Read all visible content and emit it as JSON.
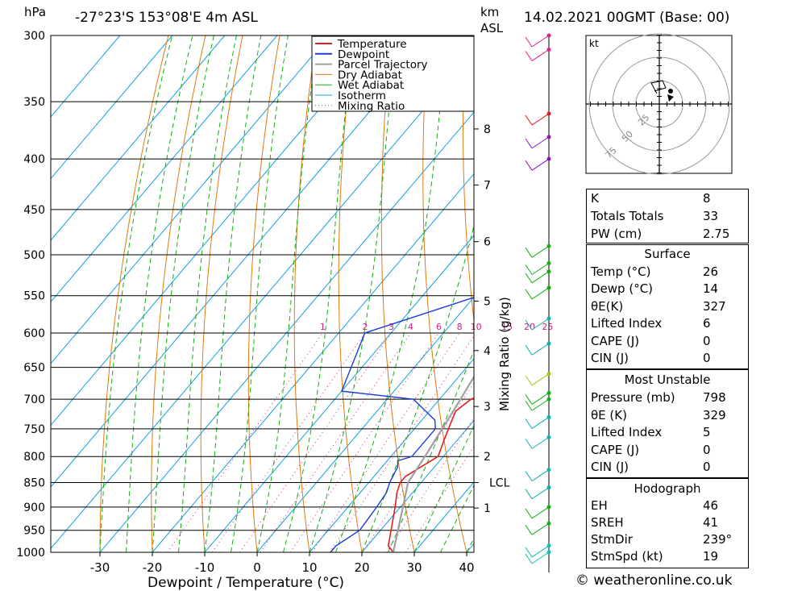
{
  "header": {
    "left_unit": "hPa",
    "location": "-27°23'S 153°08'E 4m ASL",
    "km_label": "km",
    "asl_label": "ASL",
    "datetime": "14.02.2021 00GMT (Base: 00)"
  },
  "colors": {
    "temperature": "#e02020",
    "dewpoint": "#1a3cd8",
    "parcel": "#a0a0a0",
    "dry_adiabat": "#e07a10",
    "wet_adiabat": "#10b010",
    "isotherm": "#10a0e0",
    "mixing_ratio": "#d0208a"
  },
  "chart_data": {
    "type": "line",
    "title": "",
    "xlabel": "Dewpoint / Temperature (°C)",
    "ylabel": "hPa",
    "right_axis_label": "km ASL",
    "mixing_ratio_axis_label": "Mixing Ratio (g/kg)",
    "x_ticks": [
      -30,
      -20,
      -10,
      0,
      10,
      20,
      30,
      40
    ],
    "pressure_levels": [
      300,
      350,
      400,
      450,
      500,
      550,
      600,
      650,
      700,
      750,
      800,
      850,
      900,
      950,
      1000
    ],
    "km_ticks": [
      {
        "label": "8",
        "p": 373
      },
      {
        "label": "7",
        "p": 425
      },
      {
        "label": "6",
        "p": 485
      },
      {
        "label": "5",
        "p": 557
      },
      {
        "label": "4",
        "p": 625
      },
      {
        "label": "3",
        "p": 712
      },
      {
        "label": "2",
        "p": 800
      },
      {
        "label": "LCL",
        "p": 850
      },
      {
        "label": "1",
        "p": 902
      }
    ],
    "mixing_ratio_lines": [
      "1",
      "2",
      "3",
      "4",
      "6",
      "8",
      "10",
      "15",
      "20",
      "25"
    ],
    "legend": {
      "placement": "top-right",
      "entries": [
        "Temperature",
        "Dewpoint",
        "Parcel Trajectory",
        "Dry Adiabat",
        "Wet Adiabat",
        "Isotherm",
        "Mixing Ratio"
      ]
    },
    "series": [
      {
        "name": "Temperature",
        "points": [
          [
            1000,
            26
          ],
          [
            985,
            24
          ],
          [
            950,
            22
          ],
          [
            900,
            19
          ],
          [
            870,
            17
          ],
          [
            850,
            16
          ],
          [
            838,
            16
          ],
          [
            800,
            19
          ],
          [
            770,
            17.5
          ],
          [
            750,
            16.5
          ],
          [
            720,
            15
          ],
          [
            700,
            16
          ],
          [
            685,
            19
          ],
          [
            650,
            19
          ],
          [
            600,
            19
          ],
          [
            560,
            18
          ],
          [
            540,
            17
          ],
          [
            500,
            14
          ],
          [
            480,
            13
          ],
          [
            450,
            10
          ],
          [
            400,
            6
          ],
          [
            370,
            5
          ],
          [
            360,
            5
          ],
          [
            350,
            4
          ],
          [
            300,
            2
          ]
        ]
      },
      {
        "name": "Dewpoint",
        "points": [
          [
            1000,
            14
          ],
          [
            985,
            14
          ],
          [
            950,
            16
          ],
          [
            900,
            15.5
          ],
          [
            870,
            15
          ],
          [
            850,
            14
          ],
          [
            820,
            13
          ],
          [
            808,
            12
          ],
          [
            800,
            14
          ],
          [
            760,
            14
          ],
          [
            750,
            14
          ],
          [
            735,
            12.5
          ],
          [
            700,
            5
          ],
          [
            687,
            -10
          ],
          [
            600,
            -15
          ],
          [
            520,
            11
          ],
          [
            500,
            5
          ],
          [
            470,
            -10
          ],
          [
            430,
            -4
          ],
          [
            400,
            -8
          ],
          [
            360,
            -17
          ],
          [
            350,
            -18
          ],
          [
            300,
            -20
          ]
        ]
      },
      {
        "name": "Parcel Trajectory",
        "points": [
          [
            1000,
            26
          ],
          [
            950,
            23.3
          ],
          [
            900,
            20.5
          ],
          [
            850,
            17.5
          ],
          [
            800,
            16.5
          ],
          [
            750,
            15.3
          ],
          [
            700,
            14
          ],
          [
            650,
            12.5
          ],
          [
            600,
            10.5
          ],
          [
            550,
            8
          ],
          [
            500,
            5
          ],
          [
            450,
            1.5
          ],
          [
            400,
            -3
          ],
          [
            350,
            -9
          ],
          [
            300,
            -17
          ]
        ]
      }
    ]
  },
  "hodograph": {
    "unit": "kt",
    "ring_labels": [
      "25",
      "50",
      "75"
    ]
  },
  "indices": {
    "k_label": "K",
    "k_value": "8",
    "tt_label": "Totals Totals",
    "tt_value": "33",
    "pw_label": "PW (cm)",
    "pw_value": "2.75"
  },
  "surface": {
    "title": "Surface",
    "temp_label": "Temp (°C)",
    "temp_value": "26",
    "dewp_label": "Dewp (°C)",
    "dewp_value": "14",
    "theta_label": "θE(K)",
    "theta_value": "327",
    "li_label": "Lifted Index",
    "li_value": "6",
    "cape_label": "CAPE (J)",
    "cape_value": "0",
    "cin_label": "CIN (J)",
    "cin_value": "0"
  },
  "most_unstable": {
    "title": "Most Unstable",
    "pressure_label": "Pressure (mb)",
    "pressure_value": "798",
    "theta_label": "θE (K)",
    "theta_value": "329",
    "li_label": "Lifted Index",
    "li_value": "5",
    "cape_label": "CAPE (J)",
    "cape_value": "0",
    "cin_label": "CIN (J)",
    "cin_value": "0"
  },
  "hodo_table": {
    "title": "Hodograph",
    "eh_label": "EH",
    "eh_value": "46",
    "sreh_label": "SREH",
    "sreh_value": "41",
    "stmdir_label": "StmDir",
    "stmdir_value": "239°",
    "stmspd_label": "StmSpd (kt)",
    "stmspd_value": "19"
  },
  "footer": {
    "copyright": "© weatheronline.co.uk"
  }
}
